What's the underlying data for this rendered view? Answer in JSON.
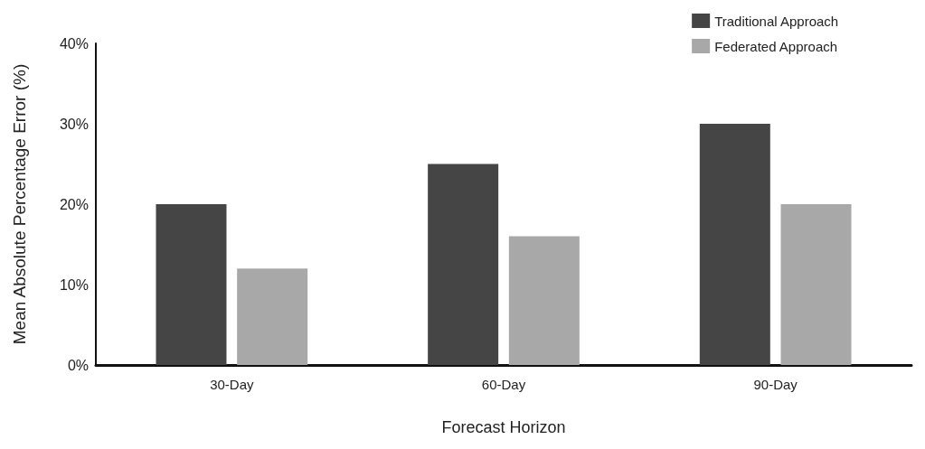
{
  "chart_data": {
    "type": "bar",
    "xlabel": "Forecast Horizon",
    "ylabel": "Mean Absolute Percentage Error (%)",
    "categories": [
      "30-Day",
      "60-Day",
      "90-Day"
    ],
    "series": [
      {
        "name": "Traditional Approach",
        "color": "#454545",
        "values": [
          20,
          25,
          30
        ]
      },
      {
        "name": "Federated Approach",
        "color": "#a8a8a8",
        "values": [
          12,
          16,
          20
        ]
      }
    ],
    "ylim": [
      0,
      40
    ],
    "yticks": [
      {
        "value": 0,
        "label": "0%"
      },
      {
        "value": 10,
        "label": "10%"
      },
      {
        "value": 20,
        "label": "20%"
      },
      {
        "value": 30,
        "label": "30%"
      },
      {
        "value": 40,
        "label": "40%"
      }
    ],
    "grid": false,
    "legend": "top right"
  }
}
